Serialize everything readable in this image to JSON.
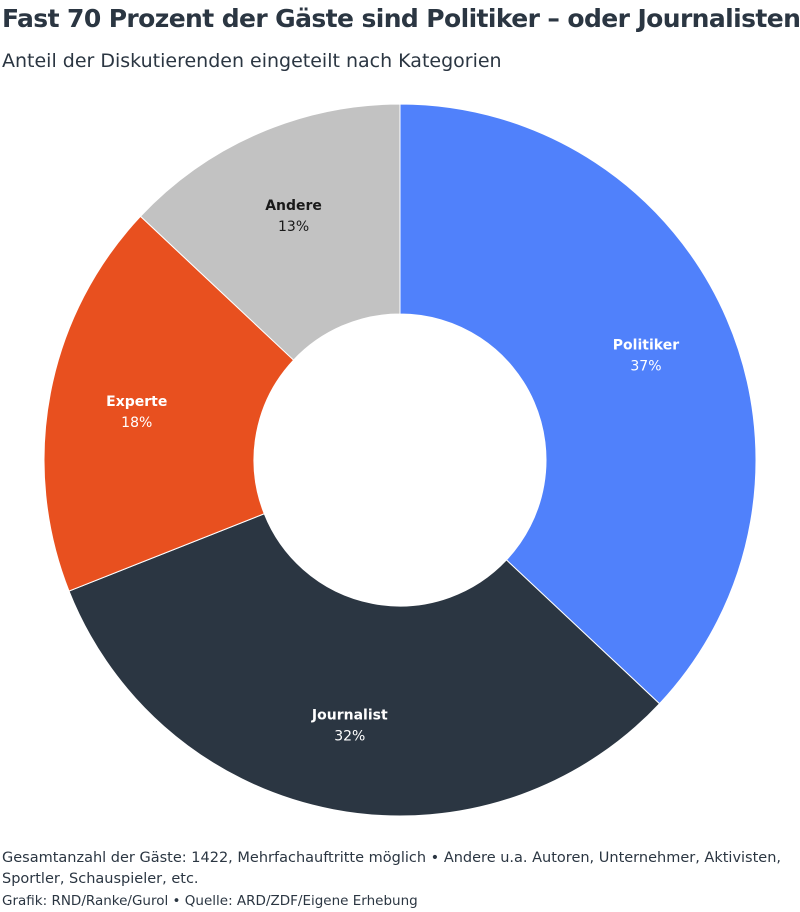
{
  "header": {
    "title": "Fast 70 Prozent der Gäste sind Politiker – oder Journalisten",
    "subtitle": "Anteil der Diskutierenden eingeteilt nach Kategorien"
  },
  "chart_data": {
    "type": "pie",
    "donut": true,
    "title": "Fast 70 Prozent der Gäste sind Politiker – oder Journalisten",
    "subtitle": "Anteil der Diskutierenden eingeteilt nach Kategorien",
    "categories": [
      "Politiker",
      "Journalist",
      "Experte",
      "Andere"
    ],
    "values": [
      37,
      32,
      18,
      13
    ],
    "value_labels": [
      "37%",
      "32%",
      "18%",
      "13%"
    ],
    "colors": [
      "#5081fb",
      "#2b3642",
      "#e8501f",
      "#c2c2c2"
    ],
    "label_colors": [
      "#ffffff",
      "#ffffff",
      "#ffffff",
      "#1a1a1a"
    ],
    "start": "12 o'clock",
    "direction": "clockwise",
    "legend": "none"
  },
  "footer": {
    "note": "Gesamtanzahl der Gäste: 1422, Mehrfachauftritte möglich • Andere u.a. Autoren, Unternehmer, Aktivisten, Sportler, Schauspieler, etc.",
    "credit": "Grafik: RND/Ranke/Gurol • Quelle: ARD/ZDF/Eigene Erhebung"
  }
}
